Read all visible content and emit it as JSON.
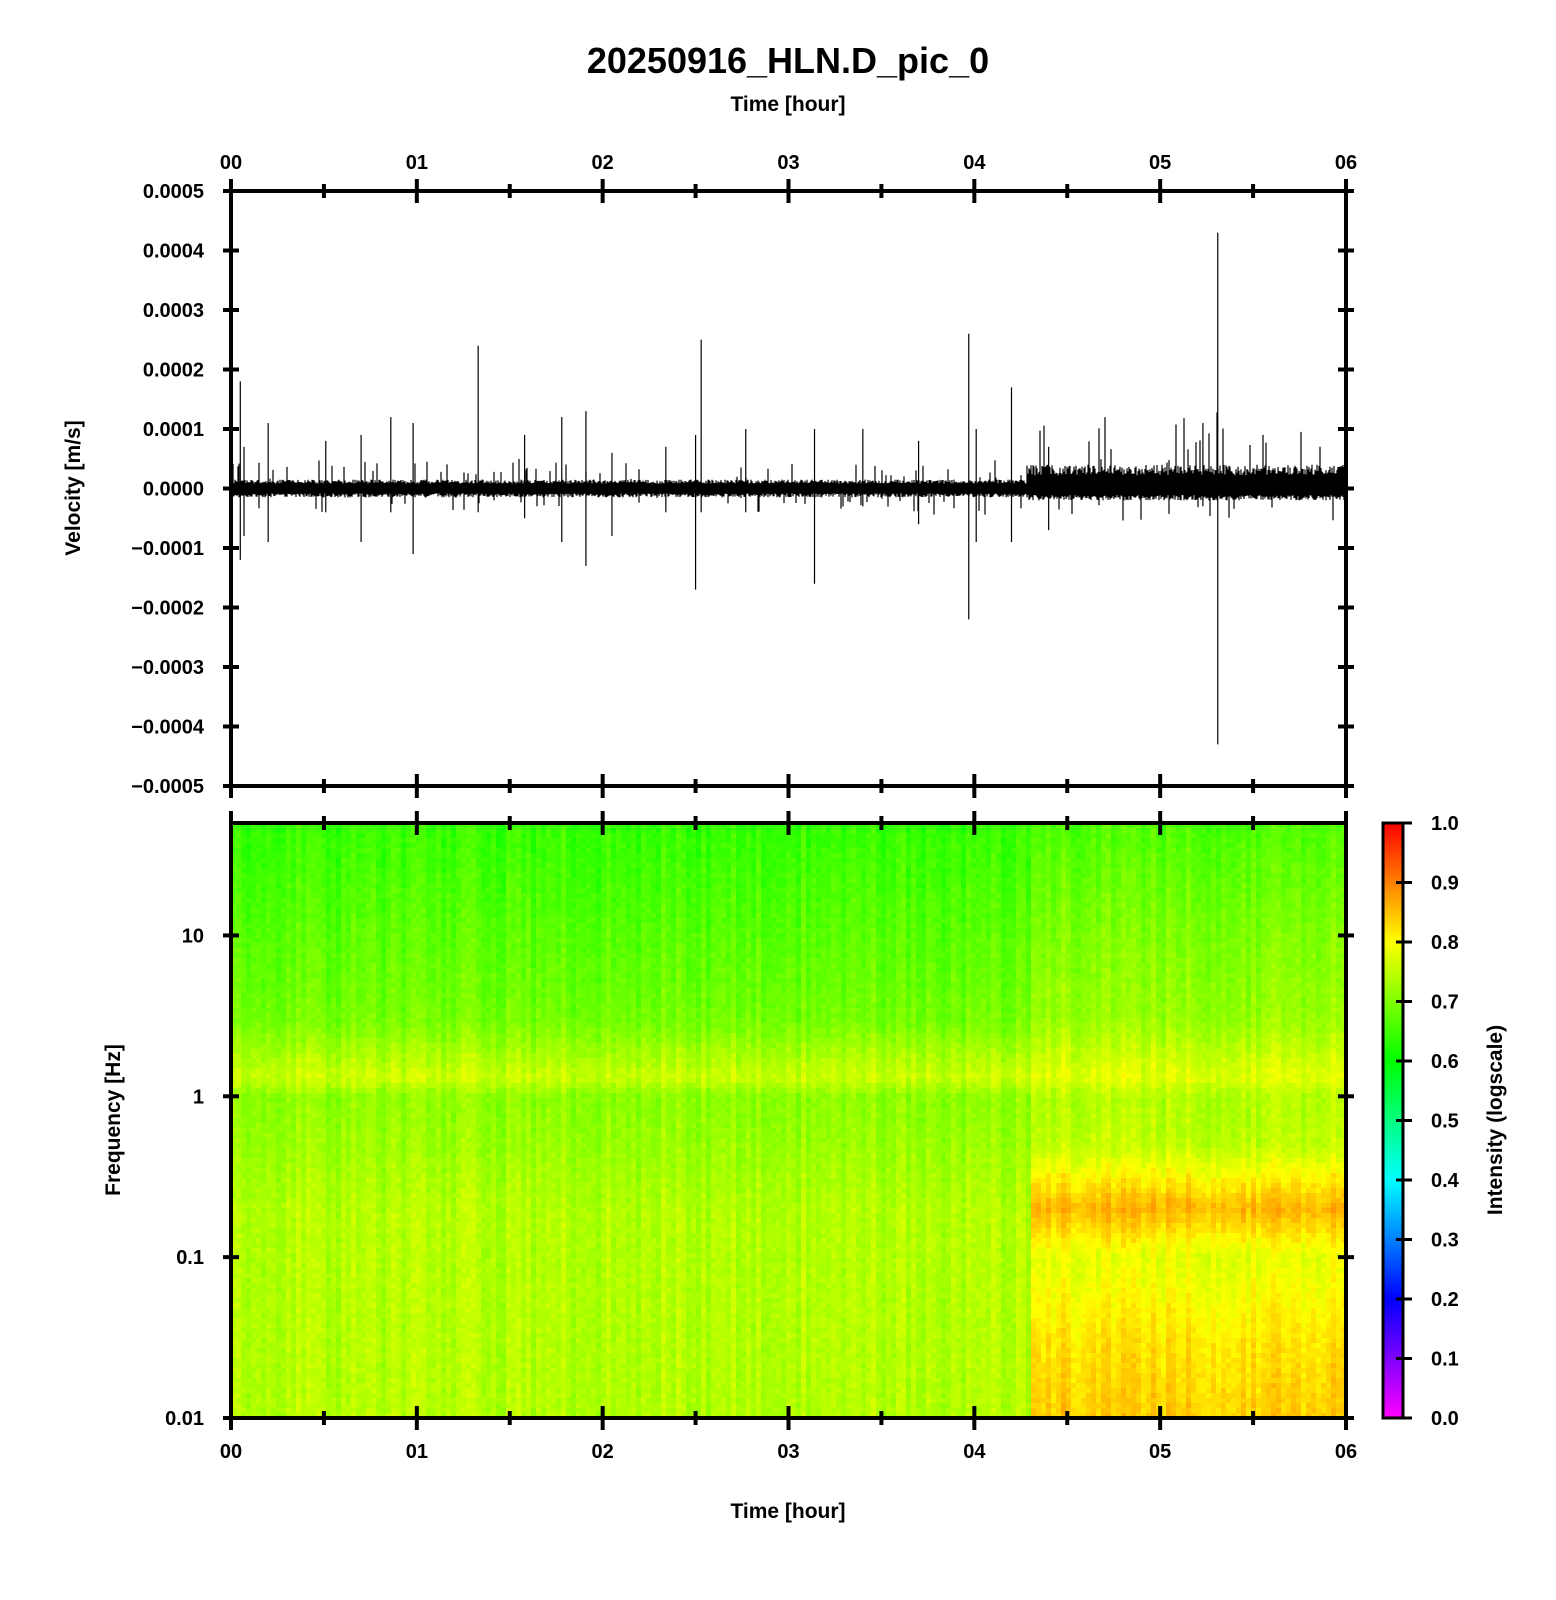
{
  "chart_data": [
    {
      "type": "line",
      "title": "20250916_HLN.D_pic_0",
      "top_xlabel": "Time [hour]",
      "ylabel": "Velocity [m/s]",
      "xlim": [
        0,
        6
      ],
      "ylim": [
        -0.0005,
        0.0005
      ],
      "x_ticks": [
        "00",
        "01",
        "02",
        "03",
        "04",
        "05",
        "06"
      ],
      "y_ticks": [
        "0.0005",
        "0.0004",
        "0.0003",
        "0.0002",
        "0.0001",
        "0.0000",
        "−0.0001",
        "−0.0002",
        "−0.0003",
        "−0.0004",
        "−0.0005"
      ],
      "y_tick_values": [
        0.0005,
        0.0004,
        0.0003,
        0.0002,
        0.0001,
        0.0,
        -0.0001,
        -0.0002,
        -0.0003,
        -0.0004,
        -0.0005
      ],
      "grid": false,
      "line_color": "#000000",
      "noise_band": [
        {
          "x_start": 0.0,
          "x_end": 4.28,
          "max": 1.5e-05,
          "min": -1.5e-05
        },
        {
          "x_start": 4.28,
          "x_end": 6.0,
          "max": 4e-05,
          "min": -2e-05
        }
      ],
      "spikes": [
        {
          "x": 0.05,
          "max": 0.00018,
          "min": -0.00012
        },
        {
          "x": 0.07,
          "max": 7e-05,
          "min": -8e-05
        },
        {
          "x": 0.2,
          "max": 0.00011,
          "min": -9e-05
        },
        {
          "x": 0.51,
          "max": 8e-05,
          "min": -4e-05
        },
        {
          "x": 0.7,
          "max": 9e-05,
          "min": -9e-05
        },
        {
          "x": 0.86,
          "max": 0.00012,
          "min": -4e-05
        },
        {
          "x": 0.98,
          "max": 0.00011,
          "min": -0.00011
        },
        {
          "x": 1.33,
          "max": 0.00024,
          "min": -4e-05
        },
        {
          "x": 1.58,
          "max": 9e-05,
          "min": -5e-05
        },
        {
          "x": 1.78,
          "max": 0.00012,
          "min": -9e-05
        },
        {
          "x": 1.91,
          "max": 0.00013,
          "min": -0.00013
        },
        {
          "x": 2.05,
          "max": 6e-05,
          "min": -8e-05
        },
        {
          "x": 2.34,
          "max": 7e-05,
          "min": -4e-05
        },
        {
          "x": 2.5,
          "max": 9e-05,
          "min": -0.00017
        },
        {
          "x": 2.53,
          "max": 0.00025,
          "min": -4e-05
        },
        {
          "x": 2.77,
          "max": 0.0001,
          "min": -4e-05
        },
        {
          "x": 3.14,
          "max": 0.0001,
          "min": -0.00016
        },
        {
          "x": 3.4,
          "max": 0.0001,
          "min": -3e-05
        },
        {
          "x": 3.7,
          "max": 8e-05,
          "min": -6e-05
        },
        {
          "x": 3.97,
          "max": 0.00026,
          "min": -0.00022
        },
        {
          "x": 4.01,
          "max": 0.0001,
          "min": -9e-05
        },
        {
          "x": 4.2,
          "max": 0.00017,
          "min": -9e-05
        },
        {
          "x": 4.4,
          "max": 7e-05,
          "min": -7e-05
        },
        {
          "x": 5.23,
          "max": 0.00011,
          "min": -3e-05
        },
        {
          "x": 5.31,
          "max": 0.00043,
          "min": -0.00043
        }
      ]
    },
    {
      "type": "heatmap",
      "xlabel": "Time [hour]",
      "ylabel": "Frequency [Hz]",
      "xlim": [
        0,
        6
      ],
      "ylim": [
        0.01,
        50
      ],
      "yscale": "log",
      "x_ticks": [
        "00",
        "01",
        "02",
        "03",
        "04",
        "05",
        "06"
      ],
      "y_ticks": [
        "10",
        "1",
        "0.1",
        "0.01"
      ],
      "y_tick_values": [
        10,
        1,
        0.1,
        0.01
      ],
      "colorbar": {
        "label": "Intensity (logscale)",
        "range": [
          0.0,
          1.0
        ],
        "ticks": [
          "1.0",
          "0.9",
          "0.8",
          "0.7",
          "0.6",
          "0.5",
          "0.4",
          "0.3",
          "0.2",
          "0.1",
          "0.0"
        ],
        "colormap": [
          "#ff00ff",
          "#0000ff",
          "#00ffff",
          "#00ff00",
          "#ffff00",
          "#ff0000"
        ]
      },
      "intensity_profile": [
        {
          "freq": 50,
          "before": 0.64,
          "after": 0.66
        },
        {
          "freq": 10,
          "before": 0.67,
          "after": 0.7
        },
        {
          "freq": 3,
          "before": 0.69,
          "after": 0.72
        },
        {
          "freq": 1.3,
          "before": 0.76,
          "after": 0.78
        },
        {
          "freq": 1,
          "before": 0.71,
          "after": 0.74
        },
        {
          "freq": 0.5,
          "before": 0.72,
          "after": 0.75
        },
        {
          "freq": 0.2,
          "before": 0.74,
          "after": 0.86
        },
        {
          "freq": 0.1,
          "before": 0.74,
          "after": 0.78
        },
        {
          "freq": 0.03,
          "before": 0.74,
          "after": 0.82
        },
        {
          "freq": 0.01,
          "before": 0.74,
          "after": 0.84
        }
      ],
      "change_time": 4.28
    }
  ]
}
